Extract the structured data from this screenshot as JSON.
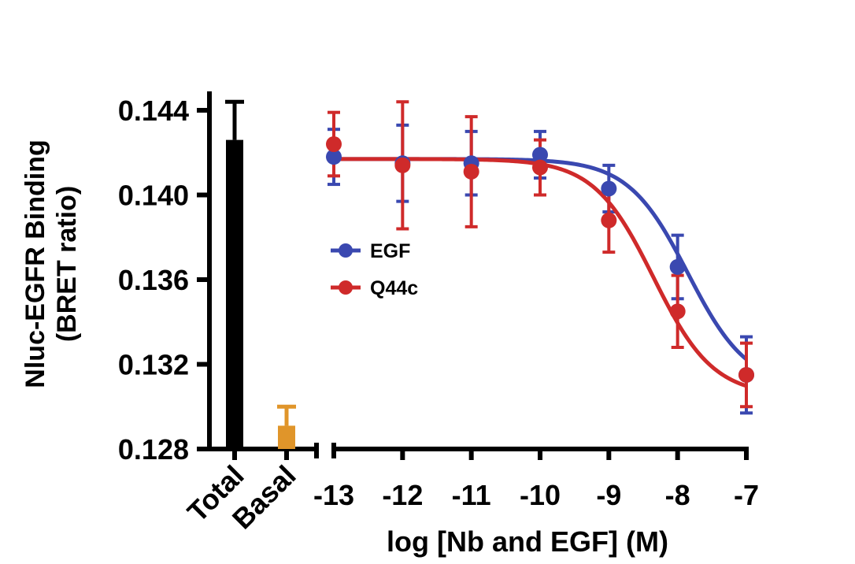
{
  "chart_data": {
    "type": "scatter",
    "ylabel_line1": "Nluc-EGFR Binding",
    "ylabel_line2": "(BRET ratio)",
    "xlabel": "log [Nb and EGF] (M)",
    "ylim": [
      0.128,
      0.145
    ],
    "y_ticks": [
      0.128,
      0.132,
      0.136,
      0.14,
      0.144
    ],
    "y_tick_labels": [
      "0.128",
      "0.132",
      "0.136",
      "0.140",
      "0.144"
    ],
    "x_ticks": [
      -13,
      -12,
      -11,
      -10,
      -9,
      -8,
      -7
    ],
    "x_tick_labels": [
      "-13",
      "-12",
      "-11",
      "-10",
      "-9",
      "-8",
      "-7"
    ],
    "bars": [
      {
        "label": "Total",
        "value": 0.1426,
        "error": 0.0018,
        "color": "#000000"
      },
      {
        "label": "Basal",
        "value": 0.1291,
        "error": 0.0009,
        "color": "#e0952a"
      }
    ],
    "series": [
      {
        "name": "EGF",
        "color": "#3a48b0",
        "x": [
          -13,
          -12,
          -11,
          -10,
          -9,
          -8,
          -7
        ],
        "y": [
          0.1418,
          0.1415,
          0.1415,
          0.1419,
          0.1403,
          0.1366,
          0.1315
        ],
        "err": [
          0.0013,
          0.0018,
          0.0015,
          0.0011,
          0.0011,
          0.0015,
          0.0018
        ],
        "fit": {
          "top": 0.1417,
          "bottom": 0.1309,
          "logEC50": -7.85,
          "hill": 1.0
        }
      },
      {
        "name": "Q44c",
        "color": "#cf2a2a",
        "x": [
          -13,
          -12,
          -11,
          -10,
          -9,
          -8,
          -7
        ],
        "y": [
          0.1424,
          0.1414,
          0.1411,
          0.1413,
          0.1388,
          0.1345,
          0.1315
        ],
        "err": [
          0.0015,
          0.003,
          0.0026,
          0.0013,
          0.0015,
          0.0017,
          0.0015
        ],
        "fit": {
          "top": 0.1417,
          "bottom": 0.1305,
          "logEC50": -8.35,
          "hill": 1.0
        }
      }
    ]
  }
}
